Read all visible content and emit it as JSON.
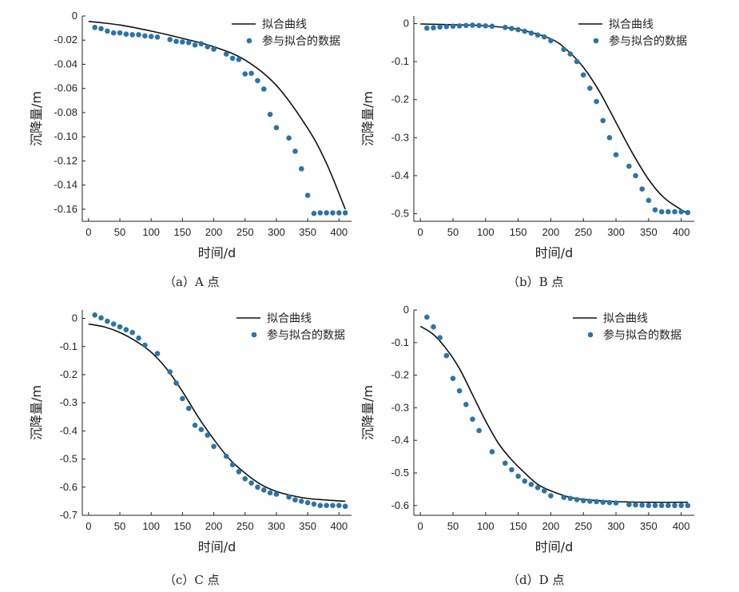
{
  "chart_data": [
    {
      "type": "line",
      "caption": "（a）A 点",
      "xlabel": "时间/d",
      "ylabel": "沉降量/m",
      "xlim": [
        -10,
        420
      ],
      "ylim": [
        -0.17,
        0
      ],
      "xticks": [
        0,
        50,
        100,
        150,
        200,
        250,
        300,
        350,
        400
      ],
      "yticks": [
        0,
        -0.02,
        -0.04,
        -0.06,
        -0.08,
        -0.1,
        -0.12,
        -0.14,
        -0.16
      ],
      "ytick_labels": [
        "0",
        "-0.02",
        "-0.04",
        "-0.06",
        "-0.08",
        "-0.10",
        "-0.12",
        "-0.14",
        "-0.16"
      ],
      "legend": [
        "拟合曲线",
        "参与拟合的数据"
      ],
      "series": [
        {
          "name": "拟合曲线",
          "kind": "line",
          "x": [
            0,
            50,
            100,
            150,
            200,
            250,
            300,
            350,
            380,
            410
          ],
          "y": [
            -0.0045,
            -0.0075,
            -0.0125,
            -0.0185,
            -0.0255,
            -0.0365,
            -0.0575,
            -0.093,
            -0.122,
            -0.16
          ]
        },
        {
          "name": "参与拟合的数据",
          "kind": "scatter",
          "x": [
            10,
            20,
            30,
            40,
            50,
            60,
            70,
            80,
            90,
            100,
            110,
            130,
            140,
            150,
            160,
            170,
            180,
            190,
            200,
            220,
            230,
            240,
            250,
            260,
            270,
            280,
            290,
            300,
            320,
            330,
            340,
            350,
            360,
            370,
            380,
            390,
            400,
            410
          ],
          "y": [
            -0.0095,
            -0.0105,
            -0.0125,
            -0.014,
            -0.014,
            -0.015,
            -0.0155,
            -0.0155,
            -0.0165,
            -0.017,
            -0.0175,
            -0.0195,
            -0.021,
            -0.0215,
            -0.022,
            -0.024,
            -0.023,
            -0.0255,
            -0.0275,
            -0.0315,
            -0.035,
            -0.036,
            -0.048,
            -0.0475,
            -0.0535,
            -0.0605,
            -0.0815,
            -0.0925,
            -0.101,
            -0.112,
            -0.1265,
            -0.1485,
            -0.1635,
            -0.163,
            -0.163,
            -0.163,
            -0.163,
            -0.163
          ]
        }
      ]
    },
    {
      "type": "line",
      "caption": "（b）B 点",
      "xlabel": "时间/d",
      "ylabel": "沉降量/m",
      "xlim": [
        -10,
        420
      ],
      "ylim": [
        -0.52,
        0.02
      ],
      "xticks": [
        0,
        50,
        100,
        150,
        200,
        250,
        300,
        350,
        400
      ],
      "yticks": [
        0,
        -0.1,
        -0.2,
        -0.3,
        -0.4,
        -0.5
      ],
      "ytick_labels": [
        "0",
        "-0.1",
        "-0.2",
        "-0.3",
        "-0.4",
        "-0.5"
      ],
      "legend": [
        "拟合曲线",
        "参与拟合的数据"
      ],
      "series": [
        {
          "name": "拟合曲线",
          "kind": "line",
          "x": [
            0,
            50,
            100,
            150,
            200,
            225,
            250,
            275,
            300,
            325,
            350,
            375,
            410
          ],
          "y": [
            -0.001,
            -0.003,
            -0.006,
            -0.015,
            -0.04,
            -0.07,
            -0.115,
            -0.18,
            -0.26,
            -0.34,
            -0.41,
            -0.46,
            -0.5
          ]
        },
        {
          "name": "参与拟合的数据",
          "kind": "scatter",
          "x": [
            10,
            20,
            30,
            40,
            50,
            60,
            70,
            80,
            90,
            100,
            110,
            130,
            140,
            150,
            160,
            170,
            180,
            190,
            200,
            220,
            230,
            240,
            250,
            260,
            270,
            280,
            290,
            300,
            320,
            330,
            340,
            350,
            360,
            370,
            380,
            390,
            400,
            410
          ],
          "y": [
            -0.012,
            -0.011,
            -0.009,
            -0.008,
            -0.007,
            -0.006,
            -0.005,
            -0.004,
            -0.005,
            -0.006,
            -0.007,
            -0.01,
            -0.013,
            -0.016,
            -0.02,
            -0.025,
            -0.03,
            -0.035,
            -0.045,
            -0.068,
            -0.08,
            -0.1,
            -0.135,
            -0.17,
            -0.205,
            -0.255,
            -0.3,
            -0.345,
            -0.375,
            -0.4,
            -0.435,
            -0.465,
            -0.49,
            -0.495,
            -0.495,
            -0.495,
            -0.495,
            -0.497
          ]
        }
      ]
    },
    {
      "type": "line",
      "caption": "（c）C 点",
      "xlabel": "时间/d",
      "ylabel": "沉降量/m",
      "xlim": [
        -10,
        420
      ],
      "ylim": [
        -0.7,
        0.03
      ],
      "xticks": [
        0,
        50,
        100,
        150,
        200,
        250,
        300,
        350,
        400
      ],
      "yticks": [
        0,
        -0.1,
        -0.2,
        -0.3,
        -0.4,
        -0.5,
        -0.6,
        -0.7
      ],
      "ytick_labels": [
        "0",
        "-0.1",
        "-0.2",
        "-0.3",
        "-0.4",
        "-0.5",
        "-0.6",
        "-0.7"
      ],
      "legend": [
        "拟合曲线",
        "参与拟合的数据"
      ],
      "series": [
        {
          "name": "拟合曲线",
          "kind": "line",
          "x": [
            0,
            25,
            50,
            75,
            100,
            125,
            150,
            175,
            200,
            225,
            250,
            275,
            300,
            325,
            350,
            375,
            410
          ],
          "y": [
            -0.02,
            -0.03,
            -0.05,
            -0.08,
            -0.12,
            -0.18,
            -0.26,
            -0.35,
            -0.43,
            -0.5,
            -0.55,
            -0.59,
            -0.615,
            -0.63,
            -0.64,
            -0.645,
            -0.65
          ]
        },
        {
          "name": "参与拟合的数据",
          "kind": "scatter",
          "x": [
            10,
            20,
            30,
            40,
            50,
            60,
            70,
            80,
            90,
            110,
            130,
            140,
            150,
            160,
            170,
            180,
            190,
            200,
            220,
            230,
            240,
            250,
            260,
            270,
            280,
            290,
            300,
            320,
            330,
            340,
            350,
            360,
            370,
            380,
            390,
            400,
            410
          ],
          "y": [
            0.012,
            0.002,
            -0.01,
            -0.02,
            -0.03,
            -0.04,
            -0.05,
            -0.07,
            -0.095,
            -0.125,
            -0.19,
            -0.23,
            -0.285,
            -0.32,
            -0.38,
            -0.395,
            -0.415,
            -0.455,
            -0.49,
            -0.52,
            -0.545,
            -0.57,
            -0.585,
            -0.6,
            -0.61,
            -0.62,
            -0.625,
            -0.635,
            -0.645,
            -0.65,
            -0.655,
            -0.66,
            -0.665,
            -0.665,
            -0.665,
            -0.665,
            -0.668
          ]
        }
      ]
    },
    {
      "type": "line",
      "caption": "（d）D 点",
      "xlabel": "时间/d",
      "ylabel": "沉降量/m",
      "xlim": [
        -10,
        420
      ],
      "ylim": [
        -0.63,
        0
      ],
      "xticks": [
        0,
        50,
        100,
        150,
        200,
        250,
        300,
        350,
        400
      ],
      "yticks": [
        0,
        -0.1,
        -0.2,
        -0.3,
        -0.4,
        -0.5,
        -0.6
      ],
      "ytick_labels": [
        "0",
        "-0.1",
        "-0.2",
        "-0.3",
        "-0.4",
        "-0.5",
        "-0.6"
      ],
      "legend": [
        "拟合曲线",
        "参与拟合的数据"
      ],
      "series": [
        {
          "name": "拟合曲线",
          "kind": "line",
          "x": [
            0,
            20,
            40,
            60,
            80,
            100,
            120,
            140,
            160,
            180,
            200,
            230,
            260,
            300,
            350,
            410
          ],
          "y": [
            -0.05,
            -0.075,
            -0.12,
            -0.18,
            -0.26,
            -0.34,
            -0.41,
            -0.46,
            -0.5,
            -0.535,
            -0.555,
            -0.575,
            -0.583,
            -0.588,
            -0.59,
            -0.59
          ]
        },
        {
          "name": "参与拟合的数据",
          "kind": "scatter",
          "x": [
            10,
            20,
            30,
            40,
            50,
            60,
            70,
            80,
            90,
            110,
            130,
            140,
            150,
            160,
            170,
            180,
            190,
            200,
            220,
            230,
            240,
            250,
            260,
            270,
            280,
            290,
            300,
            320,
            330,
            340,
            350,
            360,
            370,
            380,
            390,
            400,
            410
          ],
          "y": [
            -0.022,
            -0.052,
            -0.085,
            -0.14,
            -0.21,
            -0.248,
            -0.29,
            -0.335,
            -0.37,
            -0.435,
            -0.47,
            -0.49,
            -0.51,
            -0.525,
            -0.535,
            -0.545,
            -0.555,
            -0.57,
            -0.575,
            -0.578,
            -0.582,
            -0.585,
            -0.587,
            -0.588,
            -0.59,
            -0.591,
            -0.592,
            -0.597,
            -0.598,
            -0.599,
            -0.6,
            -0.6,
            -0.6,
            -0.6,
            -0.6,
            -0.6,
            -0.6
          ]
        }
      ]
    }
  ]
}
